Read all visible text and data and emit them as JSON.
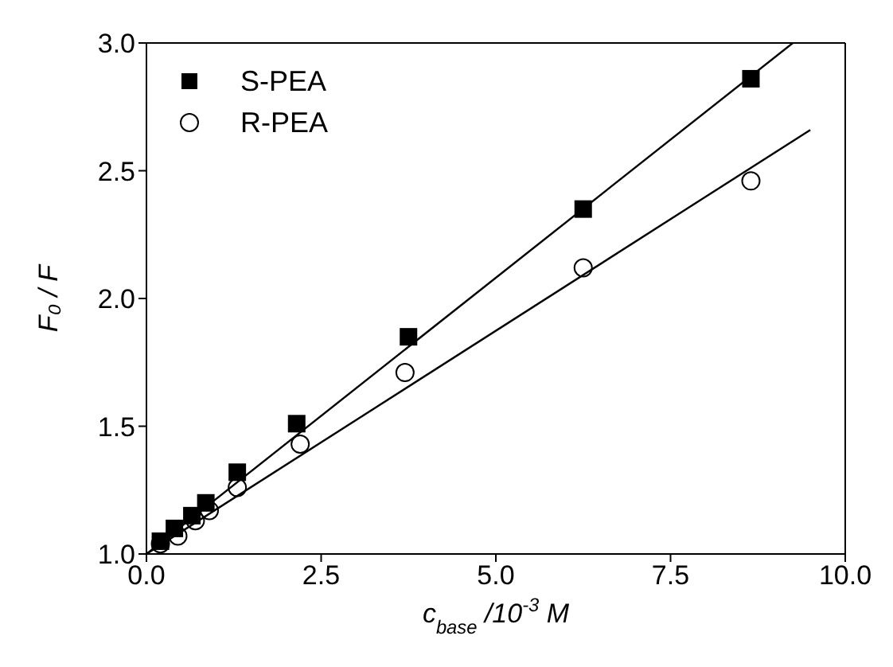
{
  "chart_data": {
    "type": "scatter",
    "xlabel": "c$_{base}$ /10$^{-3}$ M",
    "ylabel": "F₀ / F",
    "xlim": [
      0,
      10
    ],
    "xticks": [
      {
        "value": 0,
        "label": "0.0"
      },
      {
        "value": 2.5,
        "label": "2.5"
      },
      {
        "value": 5,
        "label": "5.0"
      },
      {
        "value": 7.5,
        "label": "7.5"
      },
      {
        "value": 10,
        "label": "10.0"
      }
    ],
    "ylim": [
      1,
      3
    ],
    "yticks": [
      {
        "value": 1,
        "label": "1.0"
      },
      {
        "value": 1.5,
        "label": "1.5"
      },
      {
        "value": 2,
        "label": "2.0"
      },
      {
        "value": 2.5,
        "label": "2.5"
      },
      {
        "value": 3,
        "label": "3.0"
      }
    ],
    "legend": "top left",
    "series": [
      {
        "name": "S-PEA",
        "color": "#000000",
        "marker": "square",
        "x": [
          0.2,
          0.4,
          0.65,
          0.85,
          1.3,
          2.15,
          3.75,
          6.25,
          8.65
        ],
        "values": [
          1.05,
          1.1,
          1.15,
          1.2,
          1.32,
          1.51,
          1.85,
          2.35,
          2.86
        ]
      },
      {
        "name": "R-PEA",
        "color": "#000000",
        "marker": "circle",
        "x": [
          0.2,
          0.45,
          0.7,
          0.9,
          1.3,
          2.2,
          3.7,
          6.25,
          8.65
        ],
        "values": [
          1.04,
          1.07,
          1.13,
          1.17,
          1.26,
          1.43,
          1.71,
          2.12,
          2.46
        ]
      },
      {
        "type": "line",
        "color": "#000000",
        "x": [
          0,
          9.25
        ],
        "values": [
          1.0,
          3.0
        ]
      },
      {
        "type": "line",
        "color": "#000000",
        "x": [
          0,
          9.5
        ],
        "values": [
          1.0,
          2.66
        ]
      }
    ]
  }
}
